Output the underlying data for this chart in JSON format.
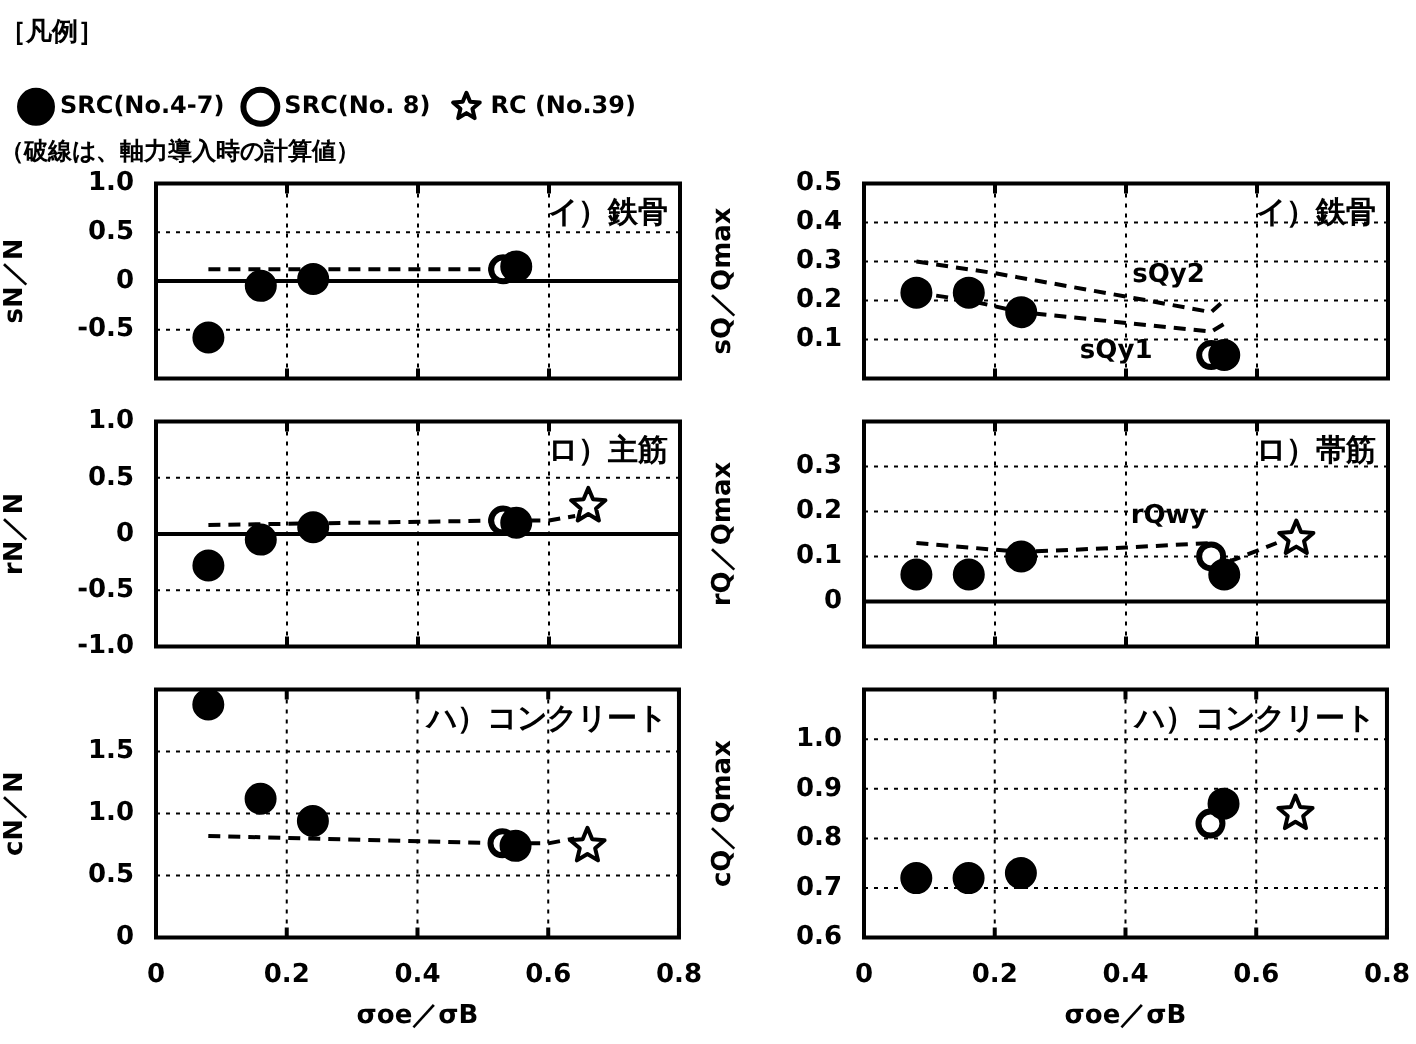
{
  "chart_data": [
    {
      "type": "scatter",
      "legend_title": "［凡例］",
      "subtitle": "（破線は、軸力導入時の計算値）",
      "ylabel": "sN／N",
      "annotations": [
        "イ）鉄骨"
      ],
      "legend": "top",
      "grid": true,
      "tick_labels": "y",
      "xlim": [
        0,
        0.8
      ],
      "xticks": [
        0,
        0.2,
        0.4,
        0.6,
        0.8
      ],
      "ylim": [
        -1,
        1
      ],
      "yticks": [
        {
          "value": -1,
          "label": null
        },
        -0.5,
        0,
        0.5,
        {
          "value": 1,
          "label": "1.0"
        }
      ],
      "ref_lines": [
        {
          "axis": "y",
          "value": 0
        }
      ],
      "series": [
        {
          "name": "SRC(No.4-7)",
          "type": "scatter",
          "marker": "circle",
          "color": "#000000",
          "x": [
            0.08,
            0.16,
            0.24,
            0.55
          ],
          "values": [
            -0.58,
            -0.05,
            0.02,
            0.15
          ]
        },
        {
          "name": "SRC(No. 8)",
          "type": "scatter",
          "marker": "circle",
          "color": "#000000",
          "x": [
            0.53
          ],
          "values": [
            0.12
          ]
        },
        {
          "name": "RC (No.39)",
          "type": "scatter",
          "marker": "star",
          "color": "#000000"
        },
        {
          "type": "line",
          "line_style": "dashed",
          "marker": "none",
          "color": "#000000",
          "x": [
            0.08,
            0.53
          ],
          "values": [
            0.12,
            0.12
          ]
        }
      ]
    },
    {
      "type": "scatter",
      "ylabel": "rN／N",
      "annotations": [
        "ロ）主筋"
      ],
      "grid": true,
      "tick_labels": "y",
      "xlim": [
        0,
        0.8
      ],
      "xticks": [
        0,
        0.2,
        0.4,
        0.6,
        0.8
      ],
      "ylim": [
        -1,
        1
      ],
      "yticks": [
        {
          "value": -1,
          "label": "-1.0"
        },
        -0.5,
        0,
        0.5,
        {
          "value": 1,
          "label": "1.0"
        }
      ],
      "ref_lines": [
        {
          "axis": "y",
          "value": 0
        }
      ],
      "series": [
        {
          "type": "scatter",
          "marker": "circle",
          "color": "#000000",
          "x": [
            0.08,
            0.16,
            0.24,
            0.55
          ],
          "values": [
            -0.28,
            -0.05,
            0.06,
            0.1
          ]
        },
        {
          "type": "scatter",
          "marker": "circle",
          "color": "#000000",
          "x": [
            0.53
          ],
          "values": [
            0.12
          ]
        },
        {
          "type": "scatter",
          "marker": "star",
          "color": "#000000",
          "x": [
            0.66
          ],
          "values": [
            0.25
          ]
        },
        {
          "type": "line",
          "line_style": "dashed",
          "marker": "none",
          "color": "#000000",
          "x": [
            0.08,
            0.53,
            0.6,
            0.64
          ],
          "values": [
            0.08,
            0.12,
            0.12,
            0.16
          ]
        }
      ]
    },
    {
      "type": "scatter",
      "ylabel": "cN／N",
      "xlabel": "σoe／σB",
      "annotations": [
        "ハ）コンクリート"
      ],
      "grid": true,
      "xlim": [
        0,
        0.8
      ],
      "xticks": [
        0,
        0.2,
        0.4,
        0.6,
        0.8
      ],
      "ylim": [
        0,
        2
      ],
      "yticks": [
        0,
        0.5,
        {
          "value": 1,
          "label": "1.0"
        },
        1.5,
        {
          "value": 2,
          "label": null
        }
      ],
      "series": [
        {
          "type": "scatter",
          "marker": "circle",
          "color": "#000000",
          "x": [
            0.08,
            0.16,
            0.24,
            0.55
          ],
          "values": [
            1.88,
            1.12,
            0.94,
            0.74
          ]
        },
        {
          "type": "scatter",
          "marker": "circle",
          "color": "#000000",
          "x": [
            0.53
          ],
          "values": [
            0.76
          ]
        },
        {
          "type": "scatter",
          "marker": "star",
          "color": "#000000",
          "x": [
            0.66
          ],
          "values": [
            0.74
          ]
        },
        {
          "type": "line",
          "line_style": "dashed",
          "marker": "none",
          "color": "#000000",
          "x": [
            0.08,
            0.53,
            0.6,
            0.64
          ],
          "values": [
            0.82,
            0.76,
            0.76,
            0.8
          ]
        }
      ]
    },
    {
      "type": "scatter",
      "ylabel": "sQ／Qmax",
      "annotations": [
        "イ）鉄骨"
      ],
      "grid": true,
      "tick_labels": "y",
      "xlim": [
        0,
        0.8
      ],
      "xticks": [
        0,
        0.2,
        0.4,
        0.6,
        0.8
      ],
      "ylim": [
        0,
        0.5
      ],
      "yticks": [
        {
          "value": 0,
          "label": null
        },
        0.1,
        0.2,
        0.3,
        0.4,
        0.5
      ],
      "series": [
        {
          "type": "scatter",
          "marker": "circle",
          "color": "#000000",
          "x": [
            0.08,
            0.16,
            0.24,
            0.55
          ],
          "values": [
            0.22,
            0.22,
            0.17,
            0.06
          ]
        },
        {
          "type": "scatter",
          "marker": "circle",
          "color": "#000000",
          "x": [
            0.53
          ],
          "values": [
            0.06
          ]
        },
        {
          "name": "sQy2",
          "type": "line",
          "line_style": "dashed",
          "marker": "none",
          "color": "#000000",
          "x": [
            0.08,
            0.2,
            0.4,
            0.53,
            0.55
          ],
          "values": [
            0.3,
            0.27,
            0.21,
            0.17,
            0.2
          ]
        },
        {
          "name": "sQy1",
          "type": "line",
          "line_style": "dashed",
          "marker": "none",
          "color": "#000000",
          "x": [
            0.08,
            0.16,
            0.24,
            0.53,
            0.55
          ],
          "values": [
            0.22,
            0.2,
            0.17,
            0.12,
            0.14
          ]
        }
      ]
    },
    {
      "type": "scatter",
      "ylabel": "rQ／Qmax",
      "annotations": [
        "ロ）帯筋"
      ],
      "grid": true,
      "tick_labels": "y",
      "xlim": [
        0,
        0.8
      ],
      "xticks": [
        0,
        0.2,
        0.4,
        0.6,
        0.8
      ],
      "ylim": [
        -0.1,
        0.4
      ],
      "yticks": [
        {
          "value": -0.1,
          "label": null
        },
        0,
        0.1,
        0.2,
        0.3,
        {
          "value": 0.4,
          "label": null
        }
      ],
      "ref_lines": [
        {
          "axis": "y",
          "value": 0
        }
      ],
      "series": [
        {
          "type": "scatter",
          "marker": "circle",
          "color": "#000000",
          "x": [
            0.08,
            0.16,
            0.24,
            0.55
          ],
          "values": [
            0.06,
            0.06,
            0.1,
            0.06
          ]
        },
        {
          "type": "scatter",
          "marker": "circle",
          "color": "#000000",
          "x": [
            0.53
          ],
          "values": [
            0.1
          ]
        },
        {
          "type": "scatter",
          "marker": "star",
          "color": "#000000",
          "x": [
            0.66
          ],
          "values": [
            0.14
          ]
        },
        {
          "name": "rQwy",
          "type": "line",
          "line_style": "dashed",
          "marker": "none",
          "color": "#000000",
          "x": [
            0.08,
            0.16,
            0.24,
            0.4,
            0.53,
            0.56,
            0.63
          ],
          "values": [
            0.13,
            0.12,
            0.11,
            0.12,
            0.13,
            0.09,
            0.13
          ]
        }
      ]
    },
    {
      "type": "scatter",
      "ylabel": "cQ／Qmax",
      "xlabel": "σoe／σB",
      "annotations": [
        "ハ）コンクリート"
      ],
      "grid": true,
      "xlim": [
        0,
        0.8
      ],
      "xticks": [
        0,
        0.2,
        0.4,
        0.6,
        0.8
      ],
      "ylim": [
        0.6,
        1.1
      ],
      "yticks": [
        0.6,
        0.7,
        0.8,
        0.9,
        {
          "value": 1,
          "label": "1.0"
        },
        {
          "value": 1.1,
          "label": null
        }
      ],
      "series": [
        {
          "type": "scatter",
          "marker": "circle",
          "color": "#000000",
          "x": [
            0.08,
            0.16,
            0.24,
            0.55
          ],
          "values": [
            0.72,
            0.72,
            0.73,
            0.87
          ]
        },
        {
          "type": "scatter",
          "marker": "circle",
          "color": "#000000",
          "x": [
            0.53
          ],
          "values": [
            0.83
          ]
        },
        {
          "type": "scatter",
          "marker": "star",
          "color": "#000000",
          "x": [
            0.66
          ],
          "values": [
            0.85
          ]
        }
      ]
    }
  ]
}
